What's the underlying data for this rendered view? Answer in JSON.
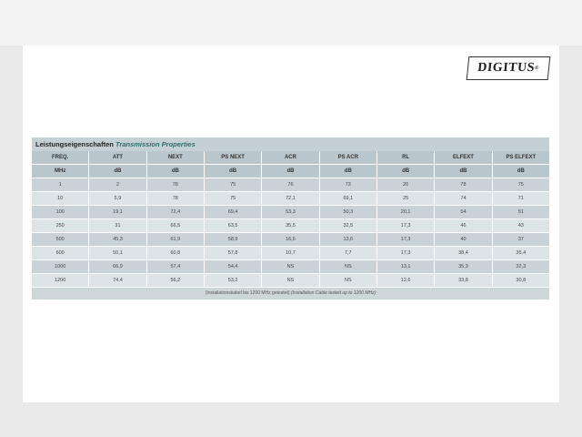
{
  "logo": "DIGITUS",
  "table": {
    "title_de": "Leistungseigenschaften",
    "title_en": "Transmission Properties",
    "headers": [
      "FREQ.",
      "ATT",
      "NEXT",
      "PS NEXT",
      "ACR",
      "PS ACR",
      "RL",
      "ELFEXT",
      "PS ELFEXT"
    ],
    "units": [
      "MHz",
      "dB",
      "dB",
      "dB",
      "dB",
      "dB",
      "dB",
      "dB",
      "dB"
    ],
    "rows": [
      [
        "1",
        "2",
        "78",
        "75",
        "76",
        "73",
        "20",
        "78",
        "75"
      ],
      [
        "10",
        "5,9",
        "78",
        "75",
        "72,1",
        "69,1",
        "25",
        "74",
        "71"
      ],
      [
        "100",
        "19,1",
        "72,4",
        "69,4",
        "53,3",
        "50,3",
        "20,1",
        "54",
        "51"
      ],
      [
        "250",
        "31",
        "66,5",
        "63,5",
        "35,5",
        "32,5",
        "17,3",
        "46",
        "43"
      ],
      [
        "500",
        "45,3",
        "61,9",
        "58,9",
        "16,6",
        "13,6",
        "17,3",
        "40",
        "37"
      ],
      [
        "600",
        "50,1",
        "60,8",
        "57,8",
        "10,7",
        "7,7",
        "17,3",
        "38,4",
        "35,4"
      ],
      [
        "1000",
        "66,9",
        "57,4",
        "54,4",
        "NS",
        "NS",
        "13,1",
        "35,3",
        "32,3"
      ],
      [
        "1200",
        "74,4",
        "56,2",
        "53,2",
        "NS",
        "NS",
        "12,6",
        "33,8",
        "30,8"
      ]
    ],
    "footnote_de": "(Installationskabel bis 1200 MHz getestet)",
    "footnote_en": "(Installation Cable tested up to 1200 MHz)"
  }
}
